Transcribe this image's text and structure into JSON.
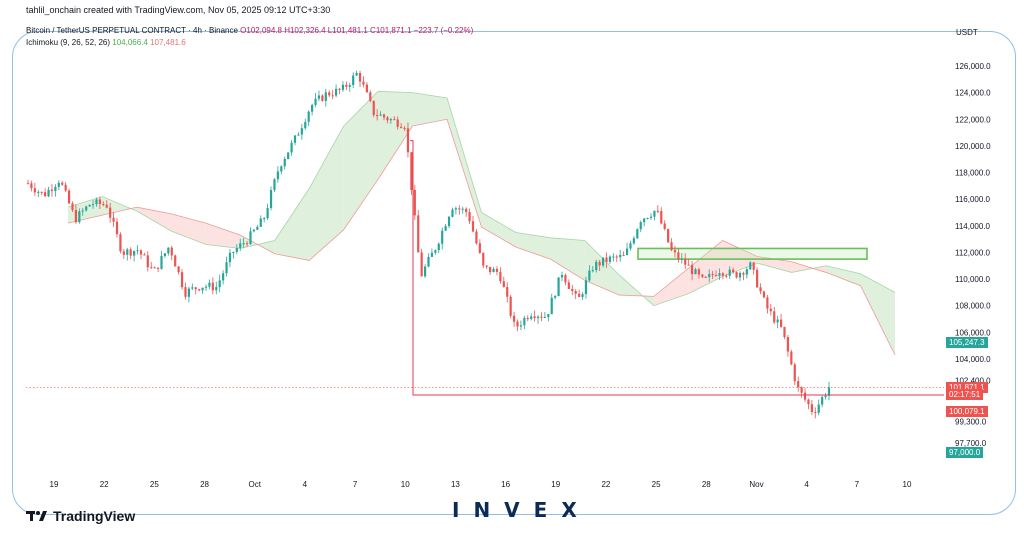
{
  "header": {
    "credit": "tahlil_onchain created with TradingView.com, Nov 05, 2025 09:12 UTC+3:30",
    "symbol_line": "Bitcoin / TetherUS PERPETUAL CONTRACT · 4h · Binance",
    "ohlc": "O102,094.8 H102,326.4 L101,481.1 C101,871.1 −223.7 (−0.22%)",
    "indicator_name": "Ichimoku (9, 26, 52, 26)",
    "indicator_val1": "104,066.4",
    "indicator_val2": "107,481.6",
    "currency": "USDT"
  },
  "branding": {
    "tradingview": "TradingView",
    "invex": "INVEX"
  },
  "colors": {
    "up": "#26a69a",
    "down": "#ef5350",
    "cloud_bull": "#dff0dc",
    "cloud_bear": "#fde2e2",
    "frame": "#8fc0ea",
    "box": "#6abf5a"
  },
  "price_tags": [
    {
      "label": "105,247.3",
      "color": "#26a69a",
      "value": 105247.3
    },
    {
      "label": "101,871.1",
      "color": "#ef5350",
      "value": 101871.1
    },
    {
      "label": "02:17:51",
      "color": "#ef5350",
      "value": 101300
    },
    {
      "label": "100,079.1",
      "color": "#ef5350",
      "value": 100079.1
    },
    {
      "label": "97,000.0",
      "color": "#26a69a",
      "value": 97000
    }
  ],
  "chart_data": {
    "type": "candlestick",
    "y_axis": {
      "ticks": [
        97700,
        99300,
        102400,
        104000,
        106000,
        108000,
        110000,
        112000,
        114000,
        116000,
        118000,
        120000,
        122000,
        124000,
        126000
      ],
      "tick_labels": [
        "97,700.0",
        "99,300.0",
        "102,400.0",
        "104,000.0",
        "106,000.0",
        "108,000.0",
        "110,000.0",
        "112,000.0",
        "114,000.0",
        "116,000.0",
        "118,000.0",
        "120,000.0",
        "122,000.0",
        "124,000.0",
        "126,000.0"
      ]
    },
    "x_axis": {
      "tick_labels": [
        "19",
        "22",
        "25",
        "28",
        "Oct",
        "4",
        "7",
        "10",
        "13",
        "16",
        "19",
        "22",
        "25",
        "28",
        "Nov",
        "4",
        "7",
        "10"
      ]
    },
    "price_path": [
      [
        0,
        117200
      ],
      [
        1,
        116300
      ],
      [
        2,
        117500
      ],
      [
        3,
        114500
      ],
      [
        4,
        115700
      ],
      [
        5,
        115600
      ],
      [
        6,
        112000
      ],
      [
        7,
        112200
      ],
      [
        8,
        110500
      ],
      [
        9,
        112500
      ],
      [
        10,
        109000
      ],
      [
        11,
        109500
      ],
      [
        12,
        109400
      ],
      [
        13,
        112000
      ],
      [
        14,
        113000
      ],
      [
        15,
        114500
      ],
      [
        16,
        118500
      ],
      [
        17,
        120500
      ],
      [
        18,
        123000
      ],
      [
        19,
        123900
      ],
      [
        20,
        124200
      ],
      [
        21,
        125500
      ],
      [
        22,
        122500
      ],
      [
        23,
        122000
      ],
      [
        24,
        121600
      ],
      [
        25,
        110200
      ],
      [
        26,
        112500
      ],
      [
        27,
        115500
      ],
      [
        28,
        115000
      ],
      [
        29,
        110800
      ],
      [
        30,
        110500
      ],
      [
        31,
        106300
      ],
      [
        32,
        107500
      ],
      [
        33,
        107200
      ],
      [
        34,
        110500
      ],
      [
        35,
        108300
      ],
      [
        36,
        111000
      ],
      [
        37,
        111500
      ],
      [
        38,
        111700
      ],
      [
        39,
        114500
      ],
      [
        40,
        115200
      ],
      [
        41,
        112000
      ],
      [
        42,
        111000
      ],
      [
        43,
        109800
      ],
      [
        44,
        110700
      ],
      [
        45,
        110300
      ],
      [
        46,
        111000
      ],
      [
        47,
        107900
      ],
      [
        48,
        106200
      ],
      [
        49,
        101800
      ],
      [
        50,
        100000
      ],
      [
        51,
        101871.1
      ]
    ],
    "ichimoku": {
      "span_a": [
        115400,
        116200,
        115100,
        113600,
        112600,
        112300,
        112900,
        116800,
        121500,
        124100,
        124000,
        123600,
        115000,
        113500,
        113100,
        112900,
        110300,
        108000,
        108900,
        110200,
        111200,
        110500,
        111000,
        110400,
        109000
      ],
      "span_b": [
        114200,
        114800,
        115400,
        114900,
        114200,
        113300,
        111900,
        111400,
        113700,
        117500,
        121500,
        122000,
        113900,
        112400,
        111500,
        109900,
        108800,
        108700,
        110800,
        112900,
        111700,
        111300,
        110500,
        109500,
        104300
      ]
    },
    "annotations": {
      "resistance_box": {
        "from_value": 111500,
        "to_value": 112300
      },
      "support_line": 101300
    },
    "last_price": 101871.1
  }
}
